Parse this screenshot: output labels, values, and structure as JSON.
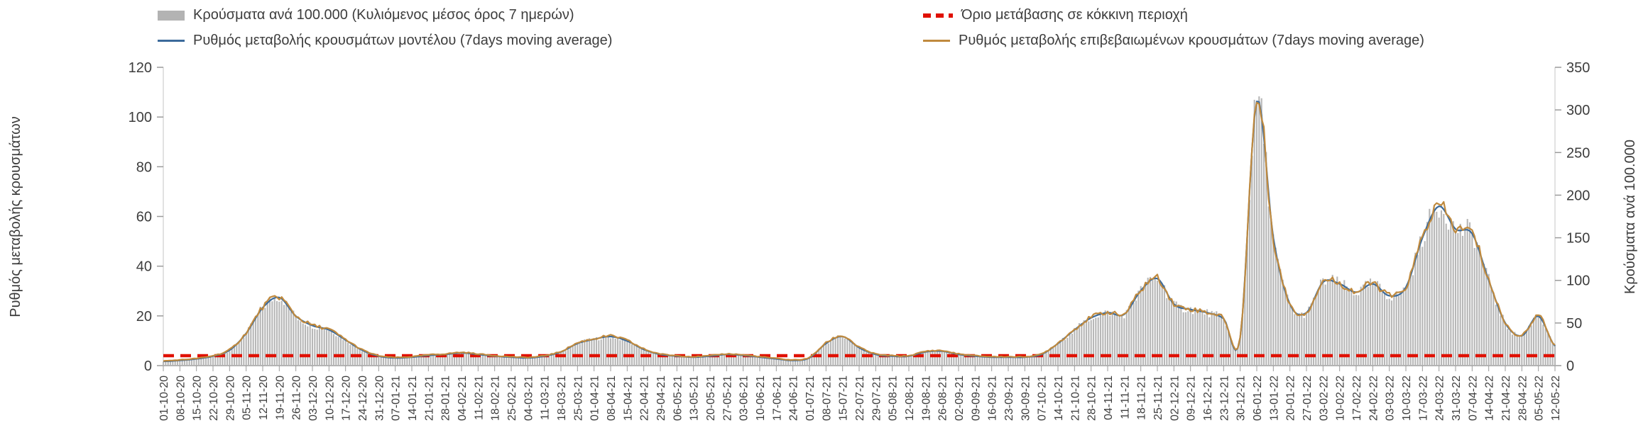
{
  "colors": {
    "bars": "#b3b3b3",
    "model": "#3b6a9b",
    "confirmed": "#c08a3e",
    "threshold": "#e01000",
    "text": "#3d3d3d",
    "axis": "#9b9b9b",
    "frame": "#d9d9d9"
  },
  "chart_data": {
    "type": "bar",
    "x_tick_frequency": "weekly",
    "x": [
      "01-10-20",
      "08-10-20",
      "15-10-20",
      "22-10-20",
      "29-10-20",
      "05-11-20",
      "12-11-20",
      "19-11-20",
      "26-11-20",
      "03-12-20",
      "10-12-20",
      "17-12-20",
      "24-12-20",
      "31-12-20",
      "07-01-21",
      "14-01-21",
      "21-01-21",
      "28-01-21",
      "04-02-21",
      "11-02-21",
      "18-02-21",
      "25-02-21",
      "04-03-21",
      "11-03-21",
      "18-03-21",
      "25-03-21",
      "01-04-21",
      "08-04-21",
      "15-04-21",
      "22-04-21",
      "29-04-21",
      "06-05-21",
      "13-05-21",
      "20-05-21",
      "27-05-21",
      "03-06-21",
      "10-06-21",
      "17-06-21",
      "24-06-21",
      "01-07-21",
      "08-07-21",
      "15-07-21",
      "22-07-21",
      "29-07-21",
      "05-08-21",
      "12-08-21",
      "19-08-21",
      "26-08-21",
      "02-09-21",
      "09-09-21",
      "16-09-21",
      "23-09-21",
      "30-09-21",
      "07-10-21",
      "14-10-21",
      "21-10-21",
      "28-10-21",
      "04-11-21",
      "11-11-21",
      "18-11-21",
      "25-11-21",
      "02-12-21",
      "09-12-21",
      "16-12-21",
      "23-12-21",
      "30-12-21",
      "06-01-22",
      "13-01-22",
      "20-01-22",
      "27-01-22",
      "03-02-22",
      "10-02-22",
      "17-02-22",
      "24-02-22",
      "03-03-22",
      "10-03-22",
      "17-03-22",
      "24-03-22",
      "31-03-22",
      "07-04-22",
      "14-04-22",
      "21-04-22",
      "28-04-22",
      "05-05-22",
      "12-05-22"
    ],
    "series": [
      {
        "name": "Κρούσματα ανά 100.000 (Κυλιόμενος μέσος όρος 7 ημερών)",
        "kind": "bar",
        "axis": "right",
        "values": [
          5,
          6,
          8,
          11,
          18,
          38,
          68,
          80,
          58,
          47,
          42,
          30,
          18,
          11,
          9,
          10,
          12,
          13,
          15,
          13,
          11,
          10,
          9,
          11,
          16,
          26,
          31,
          34,
          29,
          19,
          13,
          11,
          10,
          11,
          13,
          12,
          10,
          8,
          6,
          9,
          26,
          34,
          21,
          13,
          11,
          11,
          16,
          17,
          13,
          11,
          10,
          10,
          10,
          13,
          26,
          42,
          56,
          62,
          60,
          88,
          102,
          72,
          66,
          62,
          55,
          33,
          310,
          150,
          72,
          62,
          98,
          96,
          86,
          96,
          82,
          92,
          150,
          187,
          160,
          155,
          100,
          50,
          35,
          58,
          23
        ]
      },
      {
        "name": "Ρυθμός μεταβολής κρουσμάτων μοντέλου (7days moving average)",
        "kind": "line",
        "axis": "left",
        "values": [
          1.7,
          2.1,
          2.7,
          3.8,
          6.2,
          13,
          23.3,
          27.4,
          19.9,
          16.1,
          14.4,
          10.3,
          6.2,
          3.8,
          3.1,
          3.4,
          4.1,
          4.5,
          5.1,
          4.5,
          3.8,
          3.4,
          3.1,
          3.8,
          5.5,
          8.9,
          10.6,
          11.7,
          9.9,
          6.5,
          4.5,
          3.8,
          3.4,
          3.8,
          4.5,
          4.1,
          3.4,
          2.7,
          2.1,
          3.1,
          8.9,
          11.7,
          7.2,
          4.5,
          3.8,
          3.8,
          5.5,
          5.8,
          4.5,
          3.8,
          3.4,
          3.4,
          3.4,
          4.5,
          8.9,
          14.4,
          19.2,
          21.3,
          20.6,
          30.2,
          35,
          24.7,
          22.6,
          21.3,
          18.9,
          11.3,
          106.3,
          51.4,
          24.7,
          21.3,
          33.6,
          32.9,
          29.5,
          32.9,
          28.1,
          31.5,
          51.4,
          64.1,
          54.9,
          53.1,
          34.3,
          17.1,
          12,
          19.9,
          7.9
        ]
      },
      {
        "name": "Ρυθμός μεταβολής επιβεβαιωμένων κρουσμάτων (7days moving average)",
        "kind": "line",
        "axis": "left",
        "values": [
          1.7,
          2.1,
          2.7,
          3.8,
          6.2,
          13,
          23.3,
          27.4,
          19.9,
          16.1,
          14.4,
          10.3,
          6.2,
          3.8,
          3.1,
          3.4,
          4.1,
          4.5,
          5.1,
          4.5,
          3.8,
          3.4,
          3.1,
          3.8,
          5.5,
          8.9,
          10.6,
          11.7,
          9.9,
          6.5,
          4.5,
          3.8,
          3.4,
          3.8,
          4.5,
          4.1,
          3.4,
          2.7,
          2.1,
          3.1,
          8.9,
          11.7,
          7.2,
          4.5,
          3.8,
          3.8,
          5.5,
          5.8,
          4.5,
          3.8,
          3.4,
          3.4,
          3.4,
          4.5,
          8.9,
          14.4,
          19.2,
          21.3,
          20.6,
          30.2,
          35,
          24.7,
          22.6,
          21.3,
          18.9,
          11.3,
          106.3,
          51.4,
          24.7,
          21.3,
          33.6,
          32.9,
          29.5,
          32.9,
          28.1,
          31.5,
          51.4,
          64.1,
          54.9,
          53.1,
          34.3,
          17.1,
          12,
          19.9,
          7.9
        ]
      },
      {
        "name": "Όριο μετάβασης σε κόκκινη περιοχή",
        "kind": "threshold",
        "axis": "left",
        "value": 4
      }
    ],
    "left_axis": {
      "title": "Ρυθμός μεταβολής κρουσμάτων",
      "range": [
        0,
        120
      ],
      "ticks": [
        0,
        20,
        40,
        60,
        80,
        100,
        120
      ]
    },
    "right_axis": {
      "title": "Κρούσματα ανά 100.000",
      "range": [
        0,
        350
      ],
      "ticks": [
        0,
        50,
        100,
        150,
        200,
        250,
        300,
        350
      ]
    }
  }
}
